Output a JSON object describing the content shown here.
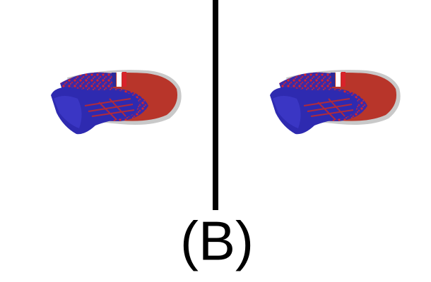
{
  "label": "(B)"
}
